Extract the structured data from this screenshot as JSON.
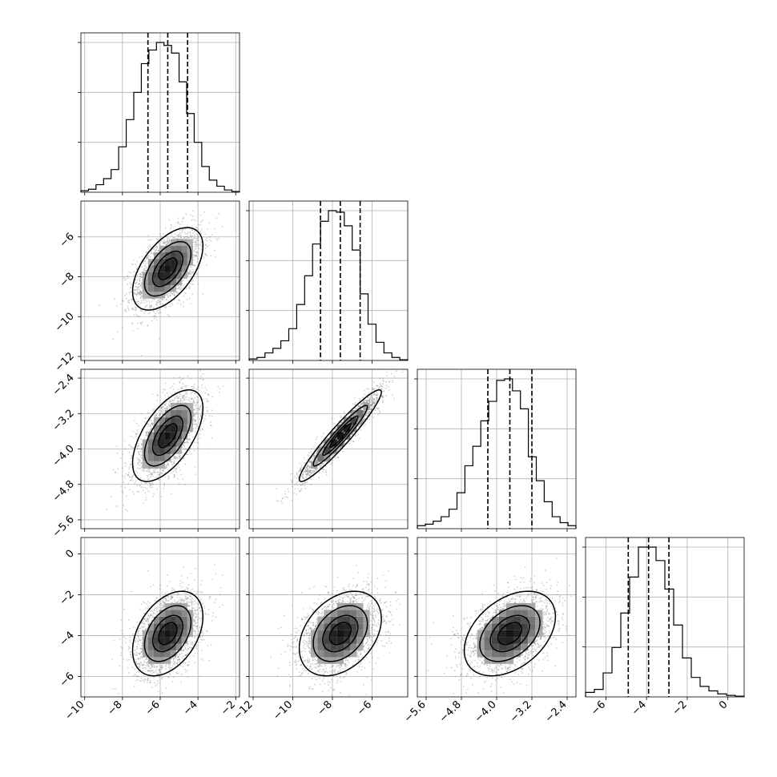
{
  "chart_data": {
    "type": "corner",
    "parameters": [
      {
        "center": -5.6,
        "sd": 0.9,
        "range": [
          -10.2,
          -1.8
        ],
        "q16": -6.65,
        "q50": -5.6,
        "q84": -4.55,
        "ticks": [
          -10,
          -8,
          -6,
          -4,
          -2
        ],
        "tick_labels": [
          "−10",
          "−8",
          "−6",
          "−4",
          "−2"
        ]
      },
      {
        "center": -7.6,
        "sd": 1.0,
        "range": [
          -12.2,
          -4.2
        ],
        "q16": -8.6,
        "q50": -7.6,
        "q84": -6.6,
        "ticks": [
          -12,
          -10,
          -8,
          -6
        ],
        "tick_labels": [
          "−12",
          "−10",
          "−8",
          "−6"
        ]
      },
      {
        "center": -3.7,
        "sd": 0.5,
        "range": [
          -5.8,
          -2.2
        ],
        "q16": -4.2,
        "q50": -3.7,
        "q84": -3.2,
        "ticks": [
          -5.6,
          -4.8,
          -4.0,
          -3.2,
          -2.4
        ],
        "tick_labels": [
          "−5.6",
          "−4.8",
          "−4.0",
          "−3.2",
          "−2.4"
        ]
      },
      {
        "center": -3.9,
        "sd": 1.0,
        "range": [
          -7.0,
          0.8
        ],
        "q16": -4.9,
        "q50": -3.9,
        "q84": -2.9,
        "ticks": [
          -6,
          -4,
          -2,
          0
        ],
        "tick_labels": [
          "−6",
          "−4",
          "−2",
          "0"
        ]
      }
    ],
    "correlations": [
      [
        1.0,
        0.55,
        0.6,
        0.4
      ],
      [
        0.55,
        1.0,
        0.95,
        0.35
      ],
      [
        0.6,
        0.95,
        1.0,
        0.4
      ],
      [
        0.4,
        0.35,
        0.4,
        1.0
      ]
    ],
    "histograms": [
      [
        0.01,
        0.02,
        0.05,
        0.09,
        0.15,
        0.3,
        0.48,
        0.66,
        0.85,
        0.94,
        0.99,
        0.97,
        0.92,
        0.73,
        0.52,
        0.33,
        0.17,
        0.08,
        0.04,
        0.015,
        0.005
      ],
      [
        0.01,
        0.02,
        0.05,
        0.08,
        0.13,
        0.21,
        0.37,
        0.56,
        0.77,
        0.92,
        0.99,
        0.98,
        0.89,
        0.73,
        0.44,
        0.24,
        0.12,
        0.05,
        0.02,
        0.005
      ],
      [
        0.02,
        0.03,
        0.05,
        0.08,
        0.13,
        0.24,
        0.42,
        0.55,
        0.72,
        0.85,
        0.99,
        1.0,
        0.92,
        0.8,
        0.48,
        0.32,
        0.18,
        0.08,
        0.04,
        0.02
      ],
      [
        0.03,
        0.05,
        0.16,
        0.33,
        0.56,
        0.8,
        1.0,
        1.0,
        0.91,
        0.72,
        0.48,
        0.26,
        0.13,
        0.07,
        0.04,
        0.02,
        0.01,
        0.005
      ]
    ],
    "contour_levels_sigma": [
      0.5,
      1.0,
      1.5,
      2.0
    ],
    "quantiles": [
      0.16,
      0.5,
      0.84
    ]
  }
}
